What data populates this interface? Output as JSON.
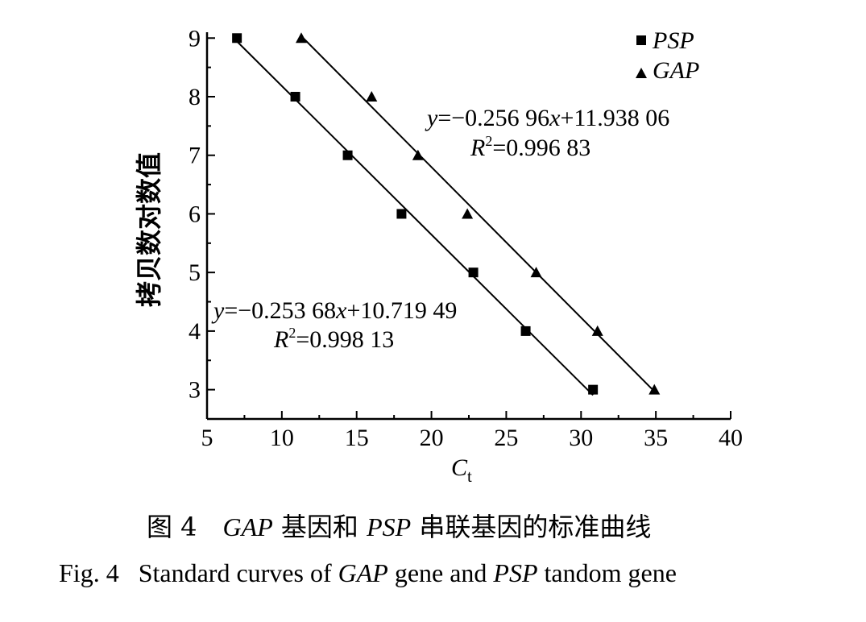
{
  "chart_data": {
    "type": "scatter",
    "ylabel": "拷贝数对数值",
    "xlabel_main": "C",
    "xlabel_sub": "t",
    "xlim": [
      5,
      40
    ],
    "ylim": [
      2.5,
      9.1
    ],
    "xticks": [
      5,
      10,
      15,
      20,
      25,
      30,
      35,
      40
    ],
    "yticks": [
      3,
      4,
      5,
      6,
      7,
      8,
      9
    ],
    "legend_position": "top-right",
    "series": [
      {
        "name": "PSP",
        "marker": "square",
        "x": [
          7.0,
          10.9,
          14.4,
          18.0,
          22.8,
          26.3,
          30.8
        ],
        "y": [
          9,
          8,
          7,
          6,
          5,
          4,
          3
        ],
        "fit": {
          "slope": -0.25368,
          "intercept": 10.71949
        },
        "equation": {
          "y": "y",
          "rhs": "=−0.253 68",
          "x": "x",
          "tail": "+10.719 49",
          "r2_r": "R",
          "r2_sup": "2",
          "r2_value": "=0.998 13"
        }
      },
      {
        "name": "GAP",
        "marker": "triangle",
        "x": [
          11.3,
          16.0,
          19.1,
          22.4,
          27.0,
          31.1,
          34.9
        ],
        "y": [
          9,
          8,
          7,
          6,
          5,
          4,
          3
        ],
        "fit": {
          "slope": -0.25696,
          "intercept": 11.93806
        },
        "equation": {
          "y": "y",
          "rhs": "=−0.256 96",
          "x": "x",
          "tail": "+11.938 06",
          "r2_r": "R",
          "r2_sup": "2",
          "r2_value": "=0.996 83"
        }
      }
    ]
  },
  "caption": {
    "cn_prefix": "图 4",
    "cn_gap": "GAP",
    "cn_mid": " 基因和 ",
    "cn_psp": "PSP",
    "cn_suffix": " 串联基因的标准曲线",
    "en_prefix": "Fig. 4",
    "en_text1": "Standard curves of ",
    "en_gap": "GAP",
    "en_text2": " gene and ",
    "en_psp": "PSP",
    "en_text3": " tandom gene"
  }
}
